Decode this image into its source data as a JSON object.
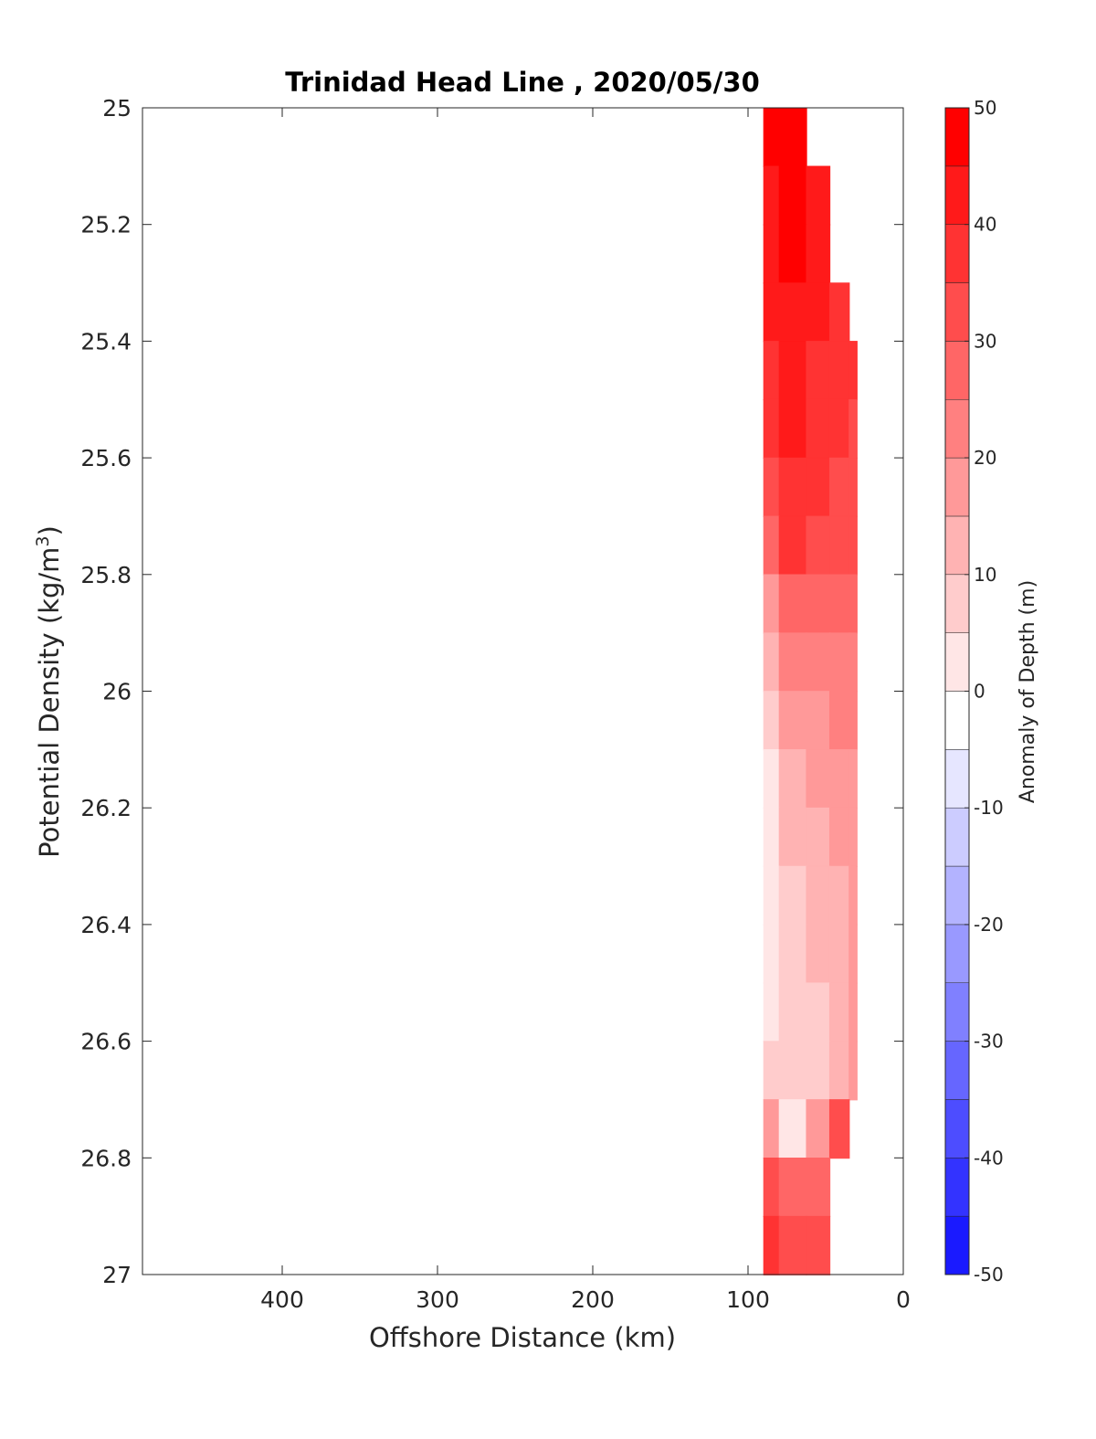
{
  "chart_data": {
    "type": "heatmap",
    "title": "Trinidad Head Line , 2020/05/30",
    "xlabel": "Offshore Distance (km)",
    "ylabel_main": "Potential Density (kg/m",
    "ylabel_sup": "3",
    "ylabel_close": ")",
    "colorbar_label": "Anomaly of Depth (m)",
    "x_reversed": true,
    "xlim": [
      0,
      490
    ],
    "ylim": [
      25,
      27
    ],
    "y_reversed": true,
    "xticks": [
      400,
      300,
      200,
      100,
      0
    ],
    "yticks": [
      25,
      25.2,
      25.4,
      25.6,
      25.8,
      26,
      26.2,
      26.4,
      26.6,
      26.8,
      27
    ],
    "ytick_labels": [
      "25",
      "25.2",
      "25.4",
      "25.6",
      "25.8",
      "26",
      "26.2",
      "26.4",
      "26.6",
      "26.8",
      "27"
    ],
    "colorbar": {
      "range": [
        -50,
        50
      ],
      "step": 5,
      "ticks": [
        50,
        40,
        30,
        20,
        10,
        0,
        -10,
        -20,
        -30,
        -40,
        -50
      ],
      "tick_labels": [
        "50",
        "40",
        "30",
        "20",
        "10",
        "0",
        "-10",
        "-20",
        "-30",
        "-40",
        "-50"
      ],
      "colormap": "blue-white-red",
      "low_color": "#0000ff",
      "mid_color": "#ffffff",
      "high_color": "#ff0000"
    },
    "distance_stations_km": [
      90,
      70,
      55,
      40,
      30
    ],
    "density_levels": [
      25.0,
      25.1,
      25.2,
      25.3,
      25.4,
      25.5,
      25.6,
      25.7,
      25.8,
      25.9,
      26.0,
      26.1,
      26.2,
      26.3,
      26.4,
      26.5,
      26.6,
      26.7,
      26.8,
      26.9
    ],
    "anomaly_m": [
      [
        48,
        50,
        null,
        null,
        null
      ],
      [
        46,
        49,
        45,
        null,
        null
      ],
      [
        45,
        48,
        44,
        null,
        null
      ],
      [
        43,
        47,
        43,
        42,
        null
      ],
      [
        41,
        46,
        42,
        40,
        38
      ],
      [
        38,
        44,
        40,
        38,
        36
      ],
      [
        33,
        41,
        38,
        36,
        35
      ],
      [
        28,
        38,
        36,
        34,
        33
      ],
      [
        20,
        32,
        31,
        30,
        30
      ],
      [
        14,
        26,
        27,
        27,
        27
      ],
      [
        8,
        20,
        22,
        23,
        24
      ],
      [
        6,
        17,
        19,
        21,
        22
      ],
      [
        5,
        13,
        15,
        18,
        20
      ],
      [
        4,
        12,
        13,
        16,
        19
      ],
      [
        3,
        10,
        13,
        17,
        21
      ],
      [
        5,
        9,
        11,
        15,
        20
      ],
      [
        8,
        10,
        9,
        14,
        22
      ],
      [
        20,
        3,
        22,
        35,
        null
      ],
      [
        33,
        28,
        30,
        null,
        null
      ],
      [
        38,
        33,
        35,
        null,
        null
      ]
    ]
  }
}
